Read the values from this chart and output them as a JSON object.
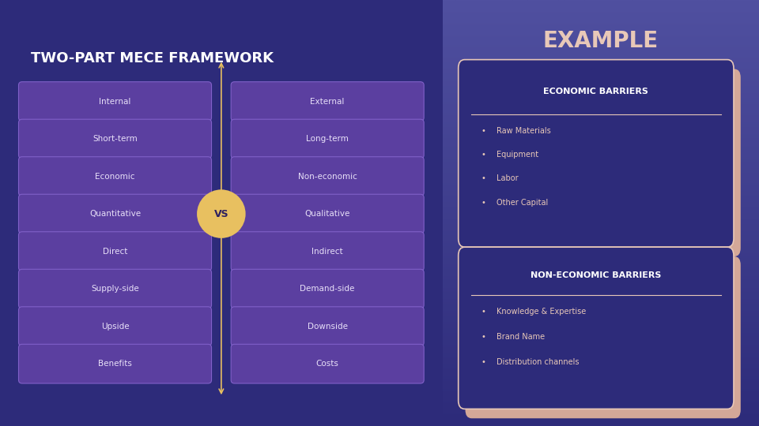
{
  "bg_color": "#2d2b7a",
  "bg_right_grad_top": "#3a3585",
  "bg_right_grad_bottom": "#5050a0",
  "title_left": "TWO-PART MECE FRAMEWORK",
  "title_right": "EXAMPLE",
  "title_left_color": "#ffffff",
  "title_right_color": "#e8c8b8",
  "rows": [
    [
      "Internal",
      "External"
    ],
    [
      "Short-term",
      "Long-term"
    ],
    [
      "Economic",
      "Non-economic"
    ],
    [
      "Quantitative",
      "Qualitative"
    ],
    [
      "Direct",
      "Indirect"
    ],
    [
      "Supply-side",
      "Demand-side"
    ],
    [
      "Upside",
      "Downside"
    ],
    [
      "Benefits",
      "Costs"
    ]
  ],
  "box_fill": "#5b3fa0",
  "box_edge": "#8060c8",
  "box_text_color": "#e8e0f8",
  "axis_color": "#e8c060",
  "vs_circle_color": "#e8c060",
  "vs_text_color": "#2d2060",
  "card_bg": "#2d2b7a",
  "card_border": "#e8c8b8",
  "card_shadow": "#d4a898",
  "card_header_text": "#ffffff",
  "card_body_text": "#e8c8b8",
  "card1_title": "ECONOMIC BARRIERS",
  "card1_items": [
    "Raw Materials",
    "Equipment",
    "Labor",
    "Other Capital"
  ],
  "card2_title": "NON-ECONOMIC BARRIERS",
  "card2_items": [
    "Knowledge & Expertise",
    "Brand Name",
    "Distribution channels"
  ]
}
